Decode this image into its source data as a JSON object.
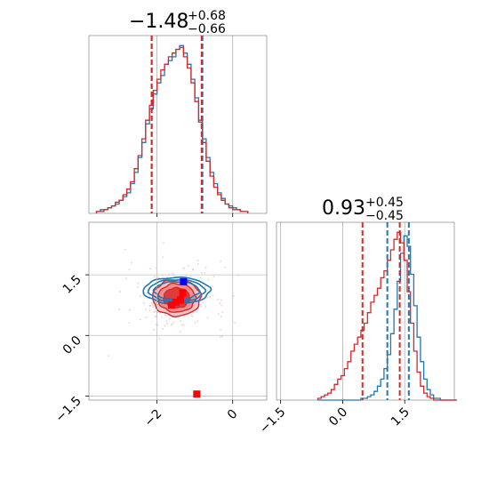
{
  "colors": {
    "series_a": "#1f77b4",
    "series_b": "#d62728",
    "marker_blue": "#0000ff",
    "marker_red": "#ff0000",
    "grid": "#b0b0b0",
    "background": "#ffffff"
  },
  "titles": {
    "param1": {
      "value": "−1.48",
      "upper": "+0.68",
      "lower": "−0.66"
    },
    "param2": {
      "value": "0.93",
      "upper": "+0.45",
      "lower": "−0.45"
    }
  },
  "chart_data": [
    {
      "type": "histogram",
      "panel": "top-left",
      "title": "",
      "xlim": [
        -3.8,
        0.9
      ],
      "x_ticks": [
        -2,
        0
      ],
      "x_tick_labels": [
        "",
        ""
      ],
      "grid": true,
      "bin_edges_start": -3.6,
      "bin_width": 0.1,
      "series": [
        {
          "color": "#1f77b4",
          "counts": [
            1,
            2,
            2,
            3,
            4,
            5,
            7,
            9,
            11,
            16,
            22,
            30,
            38,
            48,
            56,
            64,
            70,
            74,
            80,
            82,
            84,
            88,
            90,
            86,
            80,
            72,
            62,
            50,
            40,
            30,
            22,
            16,
            11,
            8,
            5,
            4,
            3,
            2,
            1,
            1
          ]
        },
        {
          "color": "#d62728",
          "counts": [
            1,
            1,
            2,
            3,
            4,
            6,
            7,
            10,
            13,
            17,
            24,
            31,
            40,
            50,
            58,
            66,
            72,
            77,
            80,
            84,
            86,
            88,
            89,
            84,
            78,
            70,
            60,
            49,
            38,
            28,
            20,
            14,
            10,
            7,
            5,
            3,
            2,
            2,
            1,
            1
          ]
        }
      ],
      "quantile_lines": [
        {
          "color": "#1f77b4",
          "values": [
            -2.14,
            -0.8
          ]
        },
        {
          "color": "#d62728",
          "values": [
            -2.14,
            -0.82
          ]
        }
      ],
      "scatter_marker": {
        "x": -1.4,
        "color": "#ff0000"
      }
    },
    {
      "type": "contour",
      "panel": "bottom-left",
      "title": "",
      "xlim": [
        -3.8,
        0.9
      ],
      "ylim": [
        -1.6,
        2.8
      ],
      "x_ticks": [
        -2,
        0
      ],
      "x_tick_labels": [
        "−2",
        "0"
      ],
      "y_ticks": [
        -1.5,
        0.0,
        1.5
      ],
      "y_tick_labels": [
        "−1.5",
        "0.0",
        "1.5"
      ],
      "grid": true,
      "center": {
        "x": -1.48,
        "y": 0.93
      },
      "series": [
        {
          "name": "",
          "color": "#1f77b4",
          "levels_sigma": [
            1.0,
            1.6,
            2.1
          ],
          "sx": 1.05,
          "sy": 0.5
        },
        {
          "name": "",
          "color": "#d62728",
          "levels_sigma": [
            1.0,
            1.6,
            2.1
          ],
          "sx": 1.15,
          "sy": 1.05
        }
      ],
      "markers": [
        {
          "x": -1.3,
          "y": 1.33,
          "color": "#0000ff"
        },
        {
          "x": -1.32,
          "y": 1.05,
          "color": "#ff0000"
        },
        {
          "x": -1.38,
          "y": 0.88,
          "color": "#ff0000"
        },
        {
          "x": -1.5,
          "y": 0.82,
          "color": "#ff0000"
        },
        {
          "x": -1.62,
          "y": 0.75,
          "color": "#ff0000"
        },
        {
          "x": -0.95,
          "y": -1.45,
          "color": "#ff0000"
        }
      ]
    },
    {
      "type": "histogram",
      "panel": "bottom-right",
      "title": "",
      "xlim": [
        -1.6,
        2.7
      ],
      "x_ticks": [
        -1.5,
        0.0,
        1.5
      ],
      "x_tick_labels": [
        "−1.5",
        "0.0",
        "1.5"
      ],
      "grid": true,
      "bin_edges_start": -0.6,
      "bin_width": 0.08,
      "series": [
        {
          "color": "#1f77b4",
          "counts": [
            0,
            0,
            0,
            0,
            0,
            0,
            0,
            0,
            0,
            0,
            0,
            0,
            0,
            1,
            1,
            2,
            3,
            5,
            8,
            12,
            18,
            26,
            38,
            52,
            68,
            84,
            94,
            88,
            72,
            54,
            36,
            22,
            12,
            6,
            3,
            1,
            1,
            0,
            0,
            0,
            0,
            0
          ]
        },
        {
          "color": "#d62728",
          "counts": [
            1,
            2,
            3,
            4,
            6,
            9,
            12,
            14,
            18,
            22,
            28,
            32,
            36,
            40,
            44,
            50,
            56,
            60,
            64,
            70,
            74,
            80,
            86,
            92,
            96,
            90,
            80,
            62,
            44,
            28,
            16,
            8,
            4,
            2,
            1,
            0,
            0,
            0,
            0,
            0,
            0,
            0
          ]
        }
      ],
      "quantile_lines": [
        {
          "color": "#d62728",
          "values": [
            0.48,
            1.38
          ]
        },
        {
          "color": "#1f77b4",
          "values": [
            1.08,
            1.6
          ]
        }
      ]
    }
  ]
}
